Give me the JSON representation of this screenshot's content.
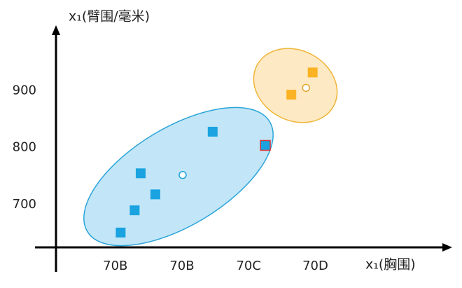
{
  "chart_data": {
    "type": "scatter",
    "y_label": "x₁(臂围/毫米)",
    "x_label": "x₁(胸围)",
    "xlim": [
      -0.1,
      6.2
    ],
    "xticks": [
      {
        "value": 1,
        "label": "70B"
      },
      {
        "value": 2,
        "label": "70B"
      },
      {
        "value": 3,
        "label": "70C"
      },
      {
        "value": 4,
        "label": "70D"
      }
    ],
    "ylim": [
      625,
      1010
    ],
    "yticks": [
      700,
      800,
      900
    ],
    "series": [
      {
        "color": "#1aa3e0",
        "marker": "square",
        "x": [
          1.08,
          1.29,
          1.38,
          1.6,
          2.46
        ],
        "values": [
          651,
          690,
          755,
          718,
          828
        ]
      },
      {
        "color": "#1aa3e0",
        "edge_color": "#d9383a",
        "marker": "square",
        "x": [
          3.25
        ],
        "values": [
          804
        ]
      },
      {
        "color": "#fbb324",
        "marker": "square",
        "x": [
          3.64,
          3.96
        ],
        "values": [
          893,
          932
        ]
      },
      {
        "color": "#ffffff",
        "edge_color": "#1aa3e0",
        "marker": "circle",
        "x": [
          2.01
        ],
        "values": [
          752
        ]
      },
      {
        "color": "#ffffff",
        "edge_color": "#e8a62a",
        "marker": "circle",
        "x": [
          3.86
        ],
        "values": [
          905
        ]
      }
    ]
  }
}
